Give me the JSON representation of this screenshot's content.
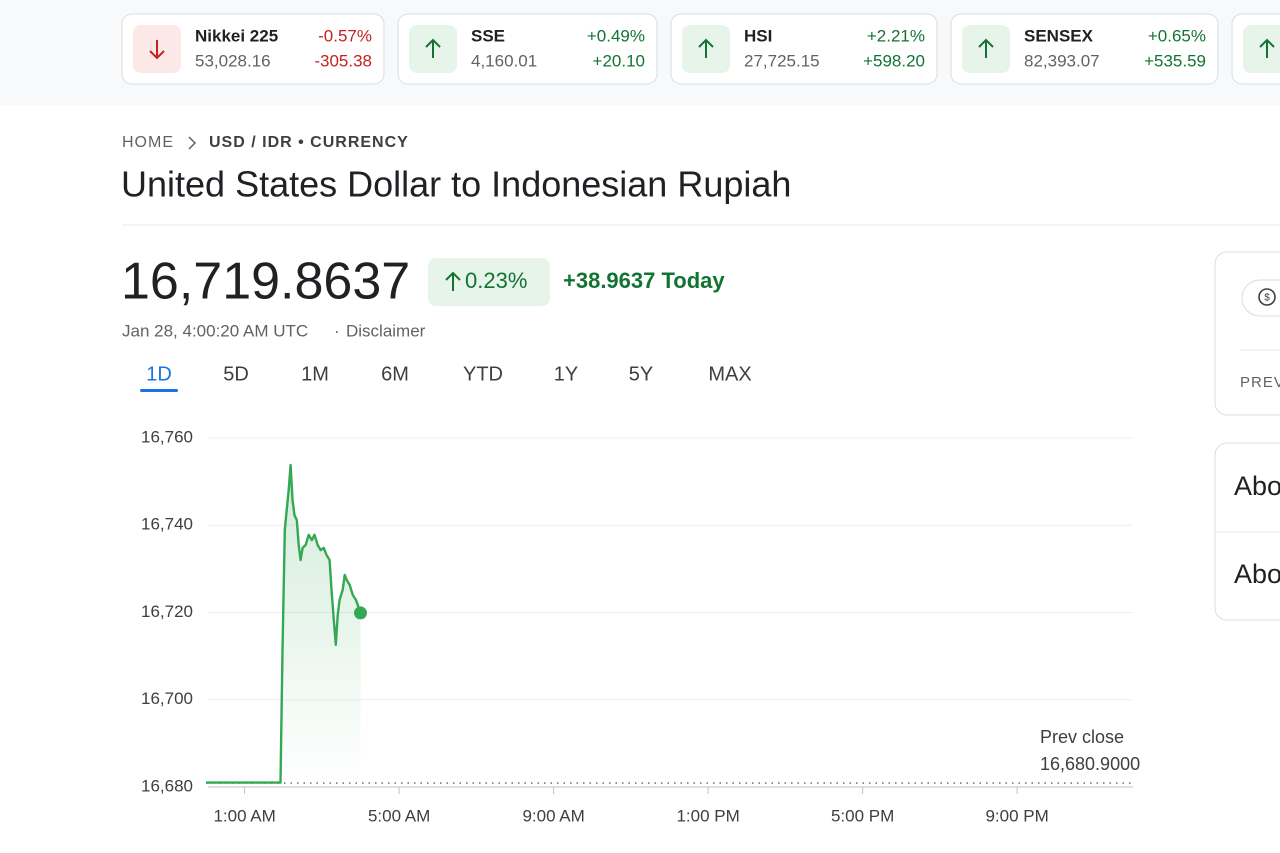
{
  "ticker": [
    {
      "name": "Nikkei 225",
      "price": "53,028.16",
      "change_pct": "-0.57%",
      "change": "-305.38"
    },
    {
      "name": "SSE",
      "price": "4,160.01",
      "change_pct": "+0.49%",
      "change": "+20.10"
    },
    {
      "name": "HSI",
      "price": "27,725.15",
      "change_pct": "+2.21%",
      "change": "+598.20"
    },
    {
      "name": "SENSEX",
      "price": "82,393.07",
      "change_pct": "+0.65%",
      "change": "+535.59"
    }
  ],
  "breadcrumb": [
    "HOME",
    "USD / IDR • CURRENCY"
  ],
  "title": "United States Dollar to Indonesian Rupiah",
  "price": "16,719.8637",
  "change_pct": "0.23%",
  "change_today": "+38.9637 Today",
  "timestamp": "Jan 28, 4:00:20 AM UTC",
  "disclaimer": "Disclaimer",
  "ranges": [
    "1D",
    "5D",
    "1M",
    "6M",
    "YTD",
    "1Y",
    "5Y",
    "MAX"
  ],
  "selected_range": "1D",
  "side_panel": {
    "label": "PREV",
    "about": [
      "Abo",
      "Abo"
    ]
  },
  "chart_data": {
    "type": "line",
    "color": "#34a853",
    "x": [
      0,
      1.93,
      1.98,
      2.04,
      2.09,
      2.14,
      2.19,
      2.24,
      2.29,
      2.35,
      2.4,
      2.45,
      2.5,
      2.58,
      2.66,
      2.74,
      2.81,
      2.89,
      2.97,
      3.05,
      3.12,
      3.2,
      3.25,
      3.31,
      3.36,
      3.41,
      3.46,
      3.54,
      3.59,
      3.64,
      3.72,
      3.8,
      3.88,
      4.0
    ],
    "values": [
      16681,
      16681,
      16711.4,
      16738.9,
      16743.5,
      16748.1,
      16753.8,
      16745.8,
      16742.3,
      16741.2,
      16735.5,
      16732,
      16734.8,
      16735.5,
      16737.8,
      16736.6,
      16737.8,
      16735.5,
      16734.3,
      16734.8,
      16733.2,
      16732,
      16725.2,
      16718.3,
      16712.6,
      16719.4,
      16722.9,
      16725.2,
      16728.6,
      16727.5,
      16726.3,
      16724,
      16722.9,
      16719.9
    ],
    "xlim": [
      0,
      24
    ],
    "xticks": [
      {
        "value": 1,
        "label": "1:00 AM"
      },
      {
        "value": 5,
        "label": "5:00 AM"
      },
      {
        "value": 9,
        "label": "9:00 AM"
      },
      {
        "value": 13,
        "label": "1:00 PM"
      },
      {
        "value": 17,
        "label": "5:00 PM"
      },
      {
        "value": 21,
        "label": "9:00 PM"
      }
    ],
    "ylim": [
      16680,
      16760
    ],
    "yticks": [
      {
        "value": 16680,
        "label": "16,680"
      },
      {
        "value": 16700,
        "label": "16,700"
      },
      {
        "value": 16720,
        "label": "16,720"
      },
      {
        "value": 16740,
        "label": "16,740"
      },
      {
        "value": 16760,
        "label": "16,760"
      }
    ],
    "grid": true,
    "prev_close_title": "Prev close",
    "prev_close": {
      "value": 16680.9,
      "label": "16,680.9000"
    }
  }
}
